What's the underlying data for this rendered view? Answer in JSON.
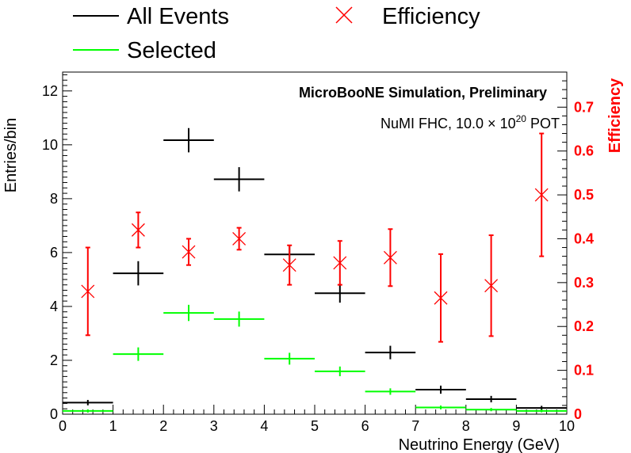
{
  "chart_data": {
    "type": "scatter",
    "title": "",
    "xlabel": "Neutrino Energy (GeV)",
    "ylabel": "Entries/bin",
    "y2label": "Efficiency",
    "xlim": [
      0,
      10
    ],
    "ylim": [
      0,
      12.7
    ],
    "y2lim": [
      0,
      0.78
    ],
    "x_ticks": [
      "0",
      "1",
      "2",
      "3",
      "4",
      "5",
      "6",
      "7",
      "8",
      "9",
      "10"
    ],
    "y_ticks": [
      "0",
      "2",
      "4",
      "6",
      "8",
      "10",
      "12"
    ],
    "y2_ticks": [
      "0",
      "0.1",
      "0.2",
      "0.3",
      "0.4",
      "0.5",
      "0.6",
      "0.7"
    ],
    "annotation_1": "MicroBooNE Simulation, Preliminary",
    "annotation_2_prefix": "NuMI FHC, 10.0",
    "annotation_2_times": "×",
    "annotation_2_base": "10",
    "annotation_2_exp": "20",
    "annotation_2_suffix": "POT",
    "legend": [
      {
        "label": "All Events",
        "color": "#000000",
        "marker": "hline"
      },
      {
        "label": "Efficiency",
        "color": "#ff0000",
        "marker": "x"
      },
      {
        "label": "Selected",
        "color": "#00ff00",
        "marker": "hline"
      }
    ],
    "bin_edges": [
      0,
      1,
      2,
      3,
      4,
      5,
      6,
      7,
      8,
      9,
      10
    ],
    "series": [
      {
        "name": "All Events",
        "color": "#000000",
        "axis": "left",
        "values": [
          0.43,
          5.23,
          10.17,
          8.72,
          5.93,
          4.49,
          2.29,
          0.91,
          0.56,
          0.23
        ],
        "errors": [
          0.1,
          0.45,
          0.45,
          0.45,
          0.35,
          0.35,
          0.25,
          0.15,
          0.12,
          0.08
        ]
      },
      {
        "name": "Selected",
        "color": "#00ff00",
        "axis": "left",
        "values": [
          0.12,
          2.23,
          3.76,
          3.53,
          2.06,
          1.59,
          0.84,
          0.25,
          0.17,
          0.12
        ],
        "errors": [
          0.06,
          0.25,
          0.3,
          0.28,
          0.22,
          0.18,
          0.12,
          0.07,
          0.06,
          0.05
        ]
      },
      {
        "name": "Efficiency",
        "color": "#ff0000",
        "axis": "right",
        "x": [
          0.5,
          1.5,
          2.5,
          3.5,
          4.5,
          5.5,
          6.5,
          7.5,
          8.5,
          9.5
        ],
        "values": [
          0.28,
          0.42,
          0.37,
          0.4,
          0.34,
          0.345,
          0.357,
          0.265,
          0.293,
          0.5
        ],
        "errors": [
          0.1,
          0.04,
          0.03,
          0.025,
          0.045,
          0.05,
          0.065,
          0.1,
          0.115,
          0.14
        ]
      }
    ]
  }
}
